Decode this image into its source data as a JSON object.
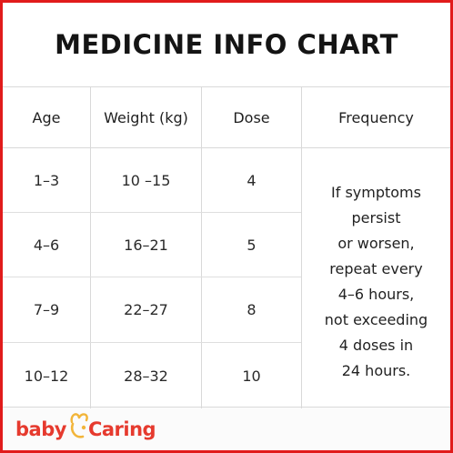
{
  "title": "MEDICINE INFO CHART",
  "table": {
    "headers": [
      "Age",
      "Weight (kg)",
      "Dose",
      "Frequency"
    ],
    "rows": [
      {
        "age": "1–3",
        "weight": "10 –15",
        "dose": "4"
      },
      {
        "age": "4–6",
        "weight": "16–21",
        "dose": "5"
      },
      {
        "age": "7–9",
        "weight": "22–27",
        "dose": "8"
      },
      {
        "age": "10–12",
        "weight": "28–32",
        "dose": "10"
      }
    ],
    "frequency_lines": [
      "If symptoms",
      "persist",
      "or worsen,",
      "repeat every",
      "4–6 hours,",
      "not exceeding",
      "4 doses in",
      "24 hours."
    ]
  },
  "brand": {
    "part1": "baby",
    "part2": "Caring",
    "mark_icon": "bee-icon"
  },
  "colors": {
    "frame_border": "#e11b1b",
    "brand_red": "#e63a2e",
    "brand_gold": "#f2b53a"
  }
}
